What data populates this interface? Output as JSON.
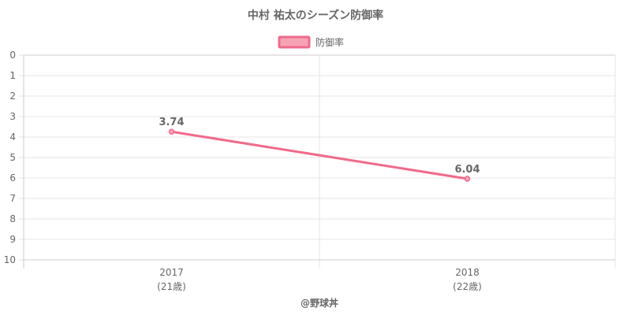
{
  "chart_data": {
    "type": "line",
    "title": "中村 祐太のシーズン防御率",
    "categories": [
      "2017",
      "2018"
    ],
    "category_sublabels": [
      "(21歳)",
      "(22歳)"
    ],
    "series": [
      {
        "name": "防御率",
        "values": [
          3.74,
          6.04
        ],
        "data_labels": [
          "3.74",
          "6.04"
        ]
      }
    ],
    "ylim": [
      0,
      10
    ],
    "y_ticks": [
      "0",
      "1",
      "2",
      "3",
      "4",
      "5",
      "6",
      "7",
      "8",
      "9",
      "10"
    ],
    "y_reversed": true,
    "grid": true,
    "legend_position": "top-center",
    "line_color": "#f06a8a",
    "legend_fill": "#f7a3b6",
    "credit": "@野球丼"
  }
}
